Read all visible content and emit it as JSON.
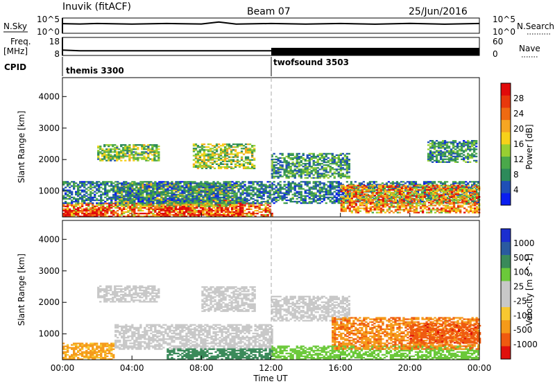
{
  "header": {
    "station": "Inuvik (fitACF)",
    "beam": "Beam 07",
    "date": "25/Jun/2016"
  },
  "status_panels": {
    "nsky_label": "N.Sky",
    "nsearch_label": "N.Search",
    "nsky_left_ticks": [
      "10^5",
      "10^0"
    ],
    "nsky_right_ticks": [
      "10^5",
      "10^0"
    ],
    "freq_label_top": "Freq.",
    "freq_label_unit": "[MHz]",
    "freq_left_ticks": [
      "18",
      "8"
    ],
    "nave_right_ticks": [
      "60",
      "0"
    ],
    "nave_label": "Nave",
    "cpid_label": "CPID",
    "cpid_segments": [
      {
        "name": "themis 3300",
        "start_hour": 0
      },
      {
        "name": "twofsound 3503",
        "start_hour": 12
      }
    ]
  },
  "axes": {
    "y_label": "Slant Range [km]",
    "x_label": "Time UT",
    "x_ticks": [
      "00:00",
      "04:00",
      "08:00",
      "12:00",
      "16:00",
      "20:00",
      "00:00"
    ],
    "y_ticks": [
      "1000",
      "2000",
      "3000",
      "4000"
    ]
  },
  "colorbars": {
    "power": {
      "label": "Power [dB]",
      "ticks": [
        "28",
        "24",
        "20",
        "16",
        "12",
        "8",
        "4"
      ],
      "colors": [
        "#0a1ef0",
        "#1f4fb6",
        "#2d8a5a",
        "#4aa84a",
        "#98cf32",
        "#f7d11a",
        "#f5a623",
        "#ef6a12",
        "#e8380c",
        "#e10a0a"
      ]
    },
    "velocity": {
      "label": "Velocity [m s^-1]",
      "ticks": [
        "1000",
        "500",
        "100",
        "25",
        "-25",
        "-100",
        "-500",
        "-1000"
      ],
      "colors": [
        "#e0100c",
        "#ef5a10",
        "#f59a1a",
        "#f7c830",
        "#c8c8c8",
        "#c8c8c8",
        "#6bc93a",
        "#3a8a5a",
        "#2a5aa0",
        "#1b2ecf"
      ]
    }
  },
  "chart_data": [
    {
      "type": "line",
      "title": "N.Sky / N.Search",
      "x": [
        0,
        1,
        2,
        4,
        6,
        8,
        9,
        10,
        12,
        14,
        16,
        18,
        20,
        22,
        24
      ],
      "y": [
        1200,
        1500,
        1300,
        1400,
        1300,
        1500,
        4000,
        1400,
        1300,
        1400,
        1300,
        1300,
        1400,
        1300,
        1300
      ],
      "ylim": [
        1,
        100000
      ],
      "yscale": "log"
    },
    {
      "type": "line",
      "title": "Freq. [MHz]",
      "x": [
        0,
        1,
        2,
        4,
        6,
        8,
        10,
        12,
        14,
        16,
        18,
        20,
        22,
        24
      ],
      "y": [
        11,
        10.6,
        10.6,
        10.6,
        10.6,
        10.6,
        10.6,
        10.6,
        10.6,
        10.6,
        10.6,
        10.6,
        10.6,
        10.6
      ],
      "ylim": [
        8,
        18
      ]
    },
    {
      "type": "heatmap",
      "title": "Power [dB]",
      "xlabel": "Time UT",
      "ylabel": "Slant Range [km]",
      "xlim": [
        0,
        24
      ],
      "ylim": [
        180,
        4600
      ],
      "zlim": [
        0,
        30
      ],
      "regions": [
        {
          "t0": 0.0,
          "t1": 12.0,
          "r0": 180,
          "r1": 600,
          "v": 22
        },
        {
          "t0": 0.0,
          "t1": 3.0,
          "r0": 180,
          "r1": 450,
          "v": 27
        },
        {
          "t0": 5.5,
          "t1": 10.3,
          "r0": 180,
          "r1": 700,
          "v": 28
        },
        {
          "t0": 3.0,
          "t1": 10.0,
          "r0": 500,
          "r1": 1250,
          "v": 14
        },
        {
          "t0": 0.0,
          "t1": 24.0,
          "r0": 600,
          "r1": 1300,
          "v": 7
        },
        {
          "t0": 2.0,
          "t1": 5.5,
          "r0": 1950,
          "r1": 2450,
          "v": 12
        },
        {
          "t0": 7.5,
          "t1": 11.0,
          "r0": 1700,
          "r1": 2500,
          "v": 13
        },
        {
          "t0": 12.0,
          "t1": 16.5,
          "r0": 1400,
          "r1": 2200,
          "v": 9
        },
        {
          "t0": 16.0,
          "t1": 24.0,
          "r0": 300,
          "r1": 1200,
          "v": 20
        },
        {
          "t0": 21.0,
          "t1": 23.8,
          "r0": 1900,
          "r1": 2600,
          "v": 8
        }
      ]
    },
    {
      "type": "heatmap",
      "title": "Velocity [m s^-1]",
      "xlabel": "Time UT",
      "ylabel": "Slant Range [km]",
      "xlim": [
        0,
        24
      ],
      "ylim": [
        180,
        4600
      ],
      "zlim": [
        -1000,
        1000
      ],
      "regions": [
        {
          "t0": 0.0,
          "t1": 3.0,
          "r0": 180,
          "r1": 700,
          "v": -120
        },
        {
          "t0": 3.0,
          "t1": 12.0,
          "r0": 500,
          "r1": 1300,
          "v": 0
        },
        {
          "t0": 6.0,
          "t1": 12.0,
          "r0": 180,
          "r1": 500,
          "v": 150
        },
        {
          "t0": 2.0,
          "t1": 5.5,
          "r0": 2000,
          "r1": 2500,
          "v": 0
        },
        {
          "t0": 8.0,
          "t1": 11.0,
          "r0": 1700,
          "r1": 2500,
          "v": 0
        },
        {
          "t0": 12.0,
          "t1": 16.5,
          "r0": 1400,
          "r1": 2200,
          "v": 0
        },
        {
          "t0": 12.0,
          "t1": 24.0,
          "r0": 180,
          "r1": 600,
          "v": 60
        },
        {
          "t0": 15.5,
          "t1": 24.0,
          "r0": 500,
          "r1": 1500,
          "v": -450
        },
        {
          "t0": 20.0,
          "t1": 24.0,
          "r0": 700,
          "r1": 1300,
          "v": -800
        }
      ]
    }
  ]
}
